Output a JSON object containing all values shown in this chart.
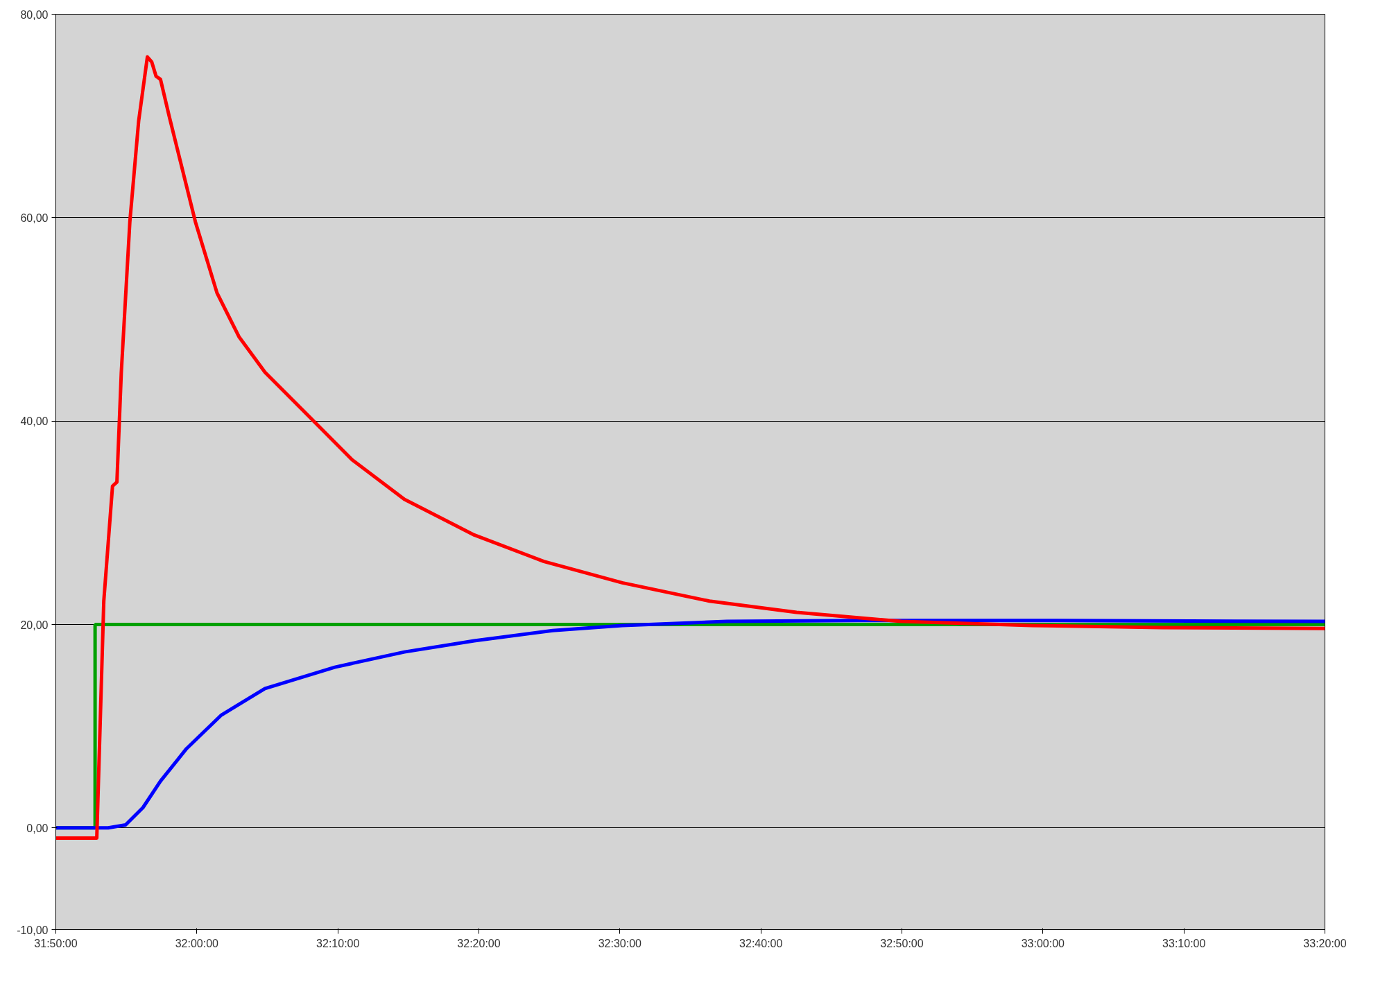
{
  "chart_data": {
    "type": "line",
    "xlim": [
      31.8333,
      33.3333
    ],
    "xticks": [
      {
        "value": 31.8333,
        "label": "31:50:00"
      },
      {
        "value": 32.0,
        "label": "32:00:00"
      },
      {
        "value": 32.1667,
        "label": "32:10:00"
      },
      {
        "value": 32.3333,
        "label": "32:20:00"
      },
      {
        "value": 32.5,
        "label": "32:30:00"
      },
      {
        "value": 32.6667,
        "label": "32:40:00"
      },
      {
        "value": 32.8333,
        "label": "32:50:00"
      },
      {
        "value": 33.0,
        "label": "33:00:00"
      },
      {
        "value": 33.1667,
        "label": "33:10:00"
      },
      {
        "value": 33.3333,
        "label": "33:20:00"
      }
    ],
    "ylim": [
      -10,
      80
    ],
    "yticks": [
      {
        "value": -10,
        "label": "-10,00"
      },
      {
        "value": 0,
        "label": "0,00"
      },
      {
        "value": 20,
        "label": "20,00"
      },
      {
        "value": 40,
        "label": "40,00"
      },
      {
        "value": 60,
        "label": "60,00"
      },
      {
        "value": 80,
        "label": "80,00"
      }
    ],
    "grid": "y",
    "series": [
      {
        "type": "step",
        "color": "#00a000",
        "x": [
          31.8333,
          31.8797,
          33.3333
        ],
        "values": [
          0,
          20,
          20
        ]
      },
      {
        "color": "#0000ff",
        "x": [
          31.8333,
          31.8952,
          31.9157,
          31.9363,
          31.957,
          31.9878,
          32.029,
          32.0805,
          32.163,
          32.2453,
          32.3278,
          32.4205,
          32.5028,
          32.6265,
          32.781,
          32.987,
          33.3333
        ],
        "values": [
          0,
          0,
          0.3,
          2,
          4.6,
          7.8,
          11.1,
          13.7,
          15.8,
          17.3,
          18.4,
          19.4,
          19.9,
          20.3,
          20.4,
          20.4,
          20.3
        ]
      },
      {
        "color": "#ff0000",
        "x": [
          31.8333,
          31.8817,
          31.89,
          31.9003,
          31.9055,
          31.9107,
          31.9208,
          31.9312,
          31.9415,
          31.9467,
          31.9518,
          31.957,
          31.9672,
          31.9827,
          31.9982,
          32.0238,
          32.0497,
          32.0805,
          32.132,
          32.1835,
          32.2453,
          32.3278,
          32.4102,
          32.5028,
          32.6058,
          32.7088,
          32.8325,
          32.987,
          33.1415,
          33.3333
        ],
        "values": [
          -1,
          -1,
          22.3,
          33.6,
          34,
          44.8,
          59.6,
          69.5,
          75.8,
          75.3,
          73.9,
          73.6,
          70,
          64.8,
          59.6,
          52.6,
          48.3,
          44.8,
          40.5,
          36.2,
          32.3,
          28.8,
          26.2,
          24.1,
          22.3,
          21.2,
          20.3,
          19.9,
          19.7,
          19.6
        ]
      }
    ]
  }
}
